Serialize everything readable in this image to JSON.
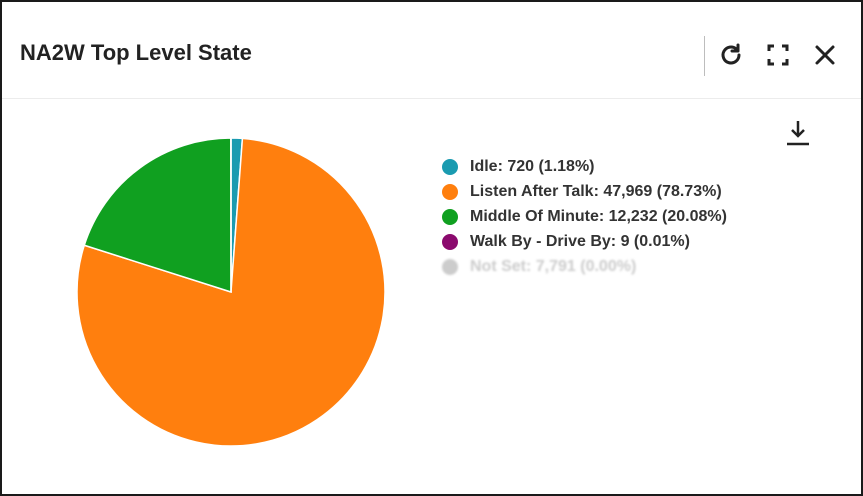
{
  "panel": {
    "title": "NA2W Top Level State",
    "icons": {
      "refresh": "refresh-icon",
      "fullscreen": "fullscreen-icon",
      "close": "close-icon",
      "download": "download-icon"
    }
  },
  "chart_data": {
    "type": "pie",
    "title": "NA2W Top Level State",
    "slices": [
      {
        "name": "Idle",
        "value": 720,
        "percent": 1.18,
        "label": "Idle: 720 (1.18%)",
        "color": "#1a9bb0",
        "visible": true
      },
      {
        "name": "Listen After Talk",
        "value": 47969,
        "percent": 78.73,
        "label": "Listen After Talk: 47,969 (78.73%)",
        "color": "#ff7f0e",
        "visible": true
      },
      {
        "name": "Middle Of Minute",
        "value": 12232,
        "percent": 20.08,
        "label": "Middle Of Minute: 12,232 (20.08%)",
        "color": "#10a020",
        "visible": true
      },
      {
        "name": "Walk By - Drive By",
        "value": 9,
        "percent": 0.01,
        "label": "Walk By - Drive By: 9 (0.01%)",
        "color": "#8b0a6e",
        "visible": true
      },
      {
        "name": "Not Set",
        "value": 7791,
        "percent": 0.0,
        "label": "Not Set: 7,791 (0.00%)",
        "color": "#cccccc",
        "visible": false
      }
    ],
    "legend_position": "right"
  }
}
